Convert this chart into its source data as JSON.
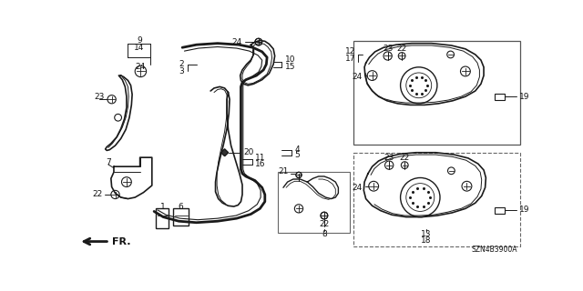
{
  "bg_color": "#ffffff",
  "diagram_code": "SZN4B3900A",
  "line_color": "#1a1a1a",
  "label_color": "#111111",
  "fs": 6.5,
  "fs_sm": 5.5
}
